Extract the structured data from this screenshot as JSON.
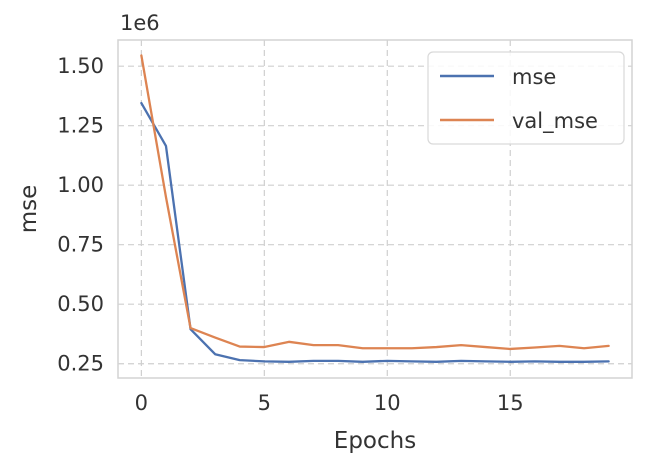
{
  "chart_data": {
    "type": "line",
    "title": "",
    "xlabel": "Epochs",
    "ylabel": "mse",
    "y_offset_text": "1e6",
    "xlim": [
      -0.95,
      19.95
    ],
    "ylim": [
      0.19,
      1.61
    ],
    "x_ticks": [
      0,
      5,
      10,
      15
    ],
    "x_tick_labels": [
      "0",
      "5",
      "10",
      "15"
    ],
    "y_ticks": [
      0.25,
      0.5,
      0.75,
      1.0,
      1.25,
      1.5
    ],
    "y_tick_labels": [
      "0.25",
      "0.50",
      "0.75",
      "1.00",
      "1.25",
      "1.50"
    ],
    "grid": true,
    "legend_position": "top-right",
    "x": [
      0,
      1,
      2,
      3,
      4,
      5,
      6,
      7,
      8,
      9,
      10,
      11,
      12,
      13,
      14,
      15,
      16,
      17,
      18,
      19
    ],
    "series": [
      {
        "name": "mse",
        "color": "#4c72b0",
        "values": [
          1.345,
          1.165,
          0.395,
          0.29,
          0.265,
          0.26,
          0.258,
          0.262,
          0.262,
          0.258,
          0.262,
          0.26,
          0.258,
          0.262,
          0.26,
          0.258,
          0.26,
          0.258,
          0.258,
          0.26
        ]
      },
      {
        "name": "val_mse",
        "color": "#dd8452",
        "values": [
          1.545,
          0.95,
          0.4,
          0.36,
          0.322,
          0.32,
          0.342,
          0.328,
          0.328,
          0.315,
          0.315,
          0.315,
          0.32,
          0.328,
          0.32,
          0.312,
          0.318,
          0.325,
          0.315,
          0.325
        ]
      }
    ]
  }
}
